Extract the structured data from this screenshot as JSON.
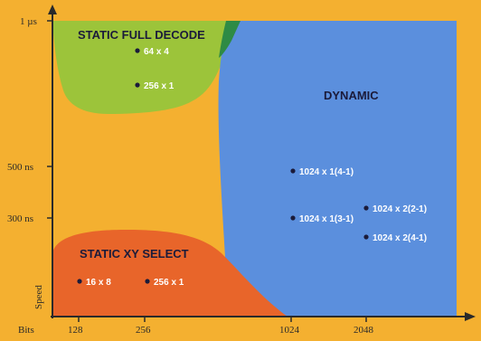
{
  "chart_data": {
    "type": "scatter",
    "title": "",
    "xlabel": "Bits",
    "ylabel": "Speed",
    "x_ticks": [
      "128",
      "256",
      "1024",
      "2048"
    ],
    "y_ticks": [
      "1 µs",
      "500 ns",
      "300 ns"
    ],
    "regions": [
      {
        "name": "STATIC FULL DECODE",
        "color": "#9CC43A"
      },
      {
        "name": "DYNAMIC",
        "color": "#5B8FDD"
      },
      {
        "name": "STATIC XY SELECT",
        "color": "#E8652A"
      }
    ],
    "overlap_color": "#2E8B45",
    "points": [
      {
        "label": "64 x 4",
        "region": "STATIC FULL DECODE",
        "x_bits": 256
      },
      {
        "label": "256 x 1",
        "region": "STATIC FULL DECODE",
        "x_bits": 256
      },
      {
        "label": "1024 x 1(4-1)",
        "region": "DYNAMIC",
        "x_bits": 1024,
        "y_ns": 500
      },
      {
        "label": "1024 x 2(2-1)",
        "region": "DYNAMIC",
        "x_bits": 2048
      },
      {
        "label": "1024 x 1(3-1)",
        "region": "DYNAMIC",
        "x_bits": 1024,
        "y_ns": 300
      },
      {
        "label": "1024 x 2(4-1)",
        "region": "DYNAMIC",
        "x_bits": 2048
      },
      {
        "label": "16 x 8",
        "region": "STATIC XY SELECT",
        "x_bits": 128
      },
      {
        "label": "256 x 1",
        "region": "STATIC XY SELECT",
        "x_bits": 256
      }
    ],
    "background_color": "#F4B030",
    "grid": false
  }
}
